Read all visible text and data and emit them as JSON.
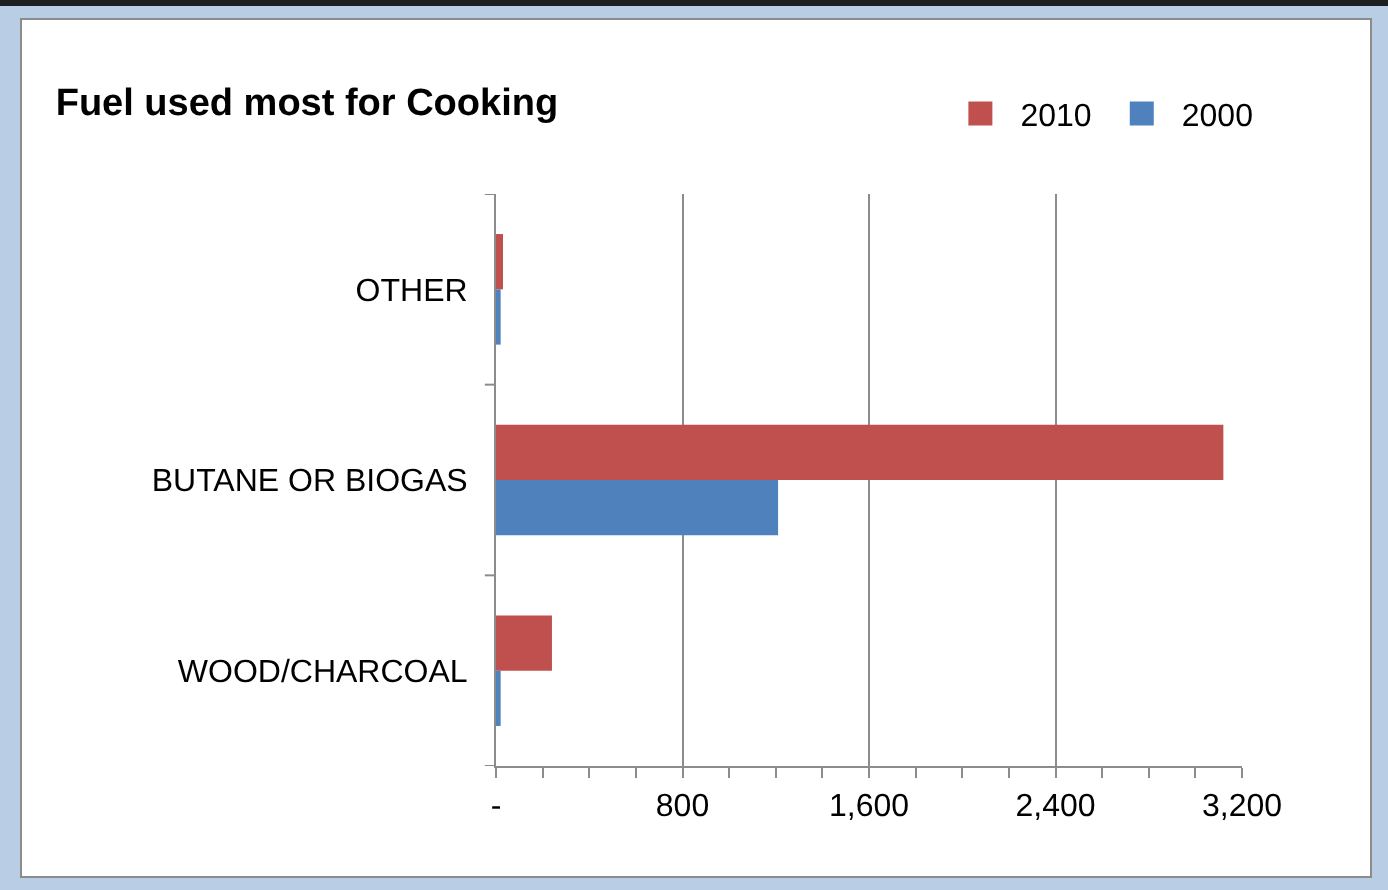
{
  "chart_data": {
    "type": "bar",
    "orientation": "horizontal",
    "title": "Fuel used most for Cooking",
    "categories": [
      "OTHER",
      "BUTANE OR BIOGAS",
      "WOOD/CHARCOAL"
    ],
    "series": [
      {
        "name": "2010",
        "color": "#c0504d",
        "values": [
          30,
          3120,
          240
        ]
      },
      {
        "name": "2000",
        "color": "#4f81bd",
        "values": [
          20,
          1210,
          20
        ]
      }
    ],
    "xlim": [
      0,
      3200
    ],
    "xticks": [
      {
        "value": 0,
        "label": "-"
      },
      800,
      {
        "value": 1600,
        "label": "1,600"
      },
      {
        "value": 2400,
        "label": "2,400"
      },
      {
        "value": 3200,
        "label": "3,200"
      }
    ],
    "grid": "x",
    "legend": "top right"
  }
}
